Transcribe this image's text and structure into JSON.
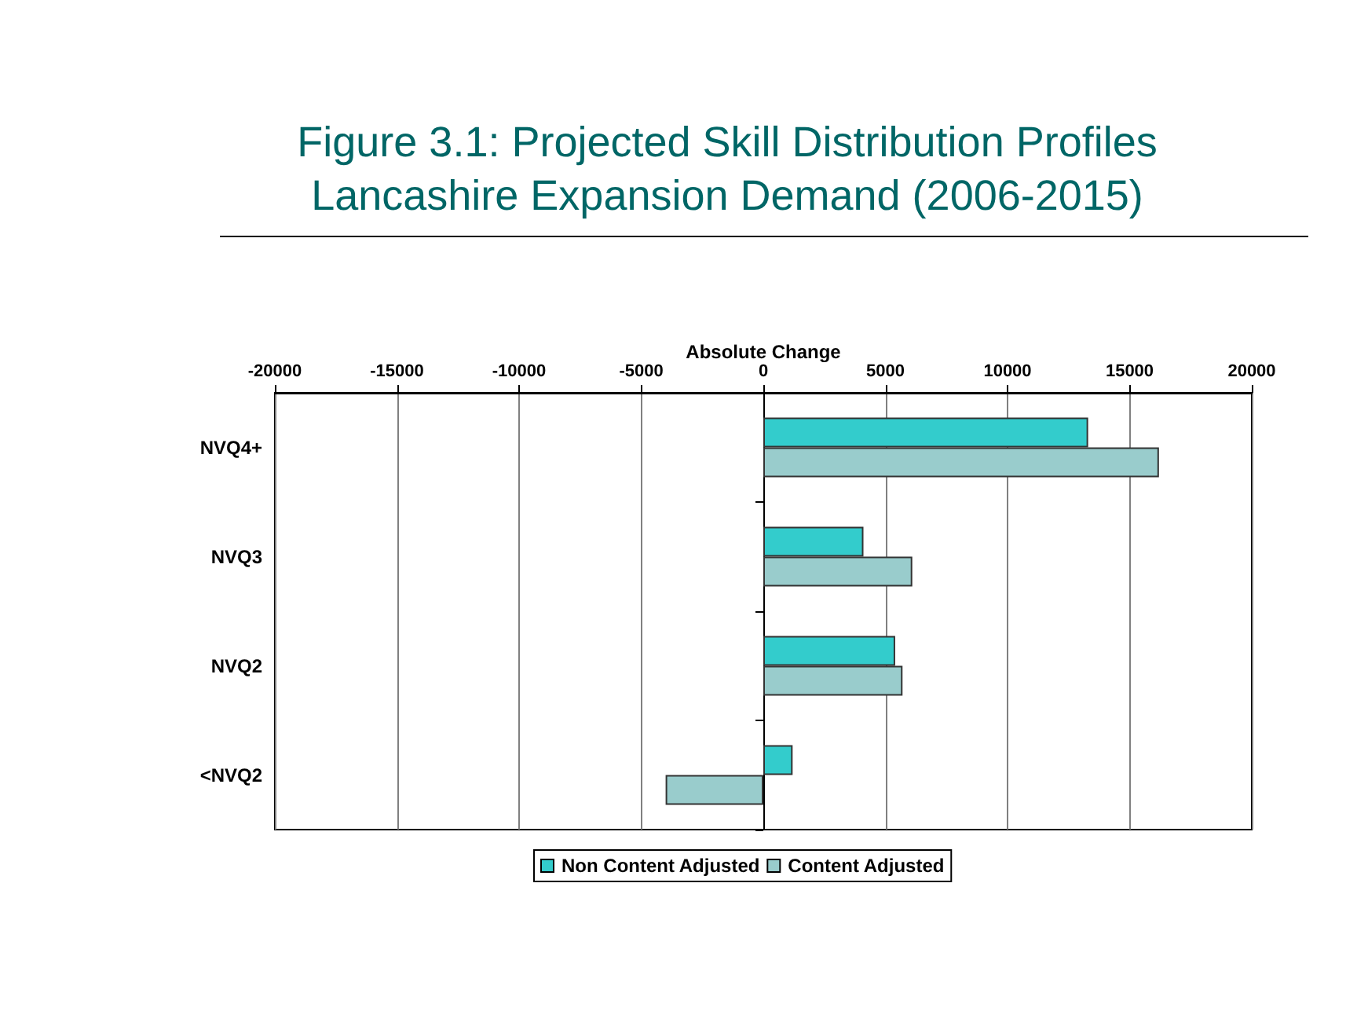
{
  "chart_data": {
    "type": "bar",
    "orientation": "horizontal",
    "title": "Figure 3.1: Projected Skill Distribution Profiles",
    "subtitle": "Lancashire Expansion Demand (2006-2015)",
    "xlabel": "Absolute Change",
    "categories": [
      "NVQ4+",
      "NVQ3",
      "NVQ2",
      "<NVQ2"
    ],
    "series": [
      {
        "name": "Non Content Adjusted",
        "color": "#33cccc",
        "values": [
          13300,
          4100,
          5400,
          1200
        ]
      },
      {
        "name": "Content Adjusted",
        "color": "#99cccc",
        "values": [
          16200,
          6100,
          5700,
          -4000
        ]
      }
    ],
    "xlim": [
      -20000,
      20000
    ],
    "xticks": [
      -20000,
      -15000,
      -10000,
      -5000,
      0,
      5000,
      10000,
      15000,
      20000
    ],
    "grid": "x",
    "legend": "bottom"
  }
}
